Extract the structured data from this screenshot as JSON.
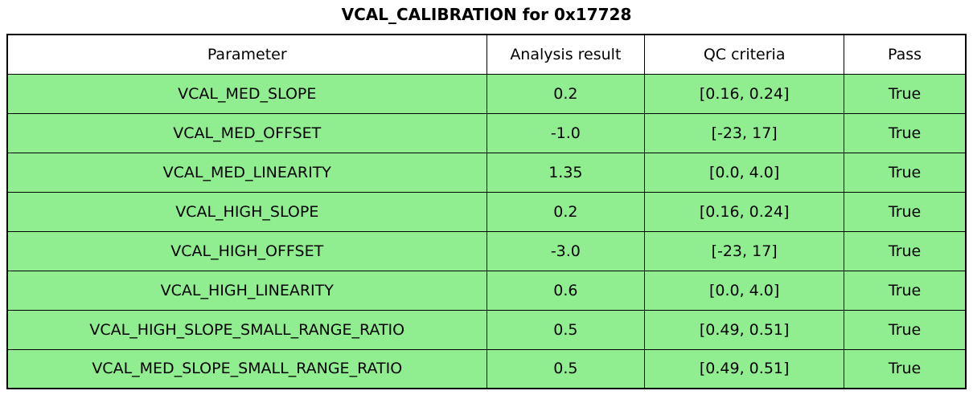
{
  "chart_data": {
    "type": "table",
    "title": "VCAL_CALIBRATION for 0x17728",
    "columns": [
      "Parameter",
      "Analysis result",
      "QC criteria",
      "Pass"
    ],
    "rows": [
      [
        "VCAL_MED_SLOPE",
        "0.2",
        "[0.16, 0.24]",
        "True"
      ],
      [
        "VCAL_MED_OFFSET",
        "-1.0",
        "[-23, 17]",
        "True"
      ],
      [
        "VCAL_MED_LINEARITY",
        "1.35",
        "[0.0, 4.0]",
        "True"
      ],
      [
        "VCAL_HIGH_SLOPE",
        "0.2",
        "[0.16, 0.24]",
        "True"
      ],
      [
        "VCAL_HIGH_OFFSET",
        "-3.0",
        "[-23, 17]",
        "True"
      ],
      [
        "VCAL_HIGH_LINEARITY",
        "0.6",
        "[0.0, 4.0]",
        "True"
      ],
      [
        "VCAL_HIGH_SLOPE_SMALL_RANGE_RATIO",
        "0.5",
        "[0.49, 0.51]",
        "True"
      ],
      [
        "VCAL_MED_SLOPE_SMALL_RANGE_RATIO",
        "0.5",
        "[0.49, 0.51]",
        "True"
      ]
    ],
    "colors": {
      "row_bg": "#90EE90",
      "header_bg": "#ffffff",
      "border": "#000000",
      "text": "#000000"
    },
    "layout": {
      "grid": "full-borders",
      "header_position": "top",
      "title_position": "top-center"
    }
  }
}
